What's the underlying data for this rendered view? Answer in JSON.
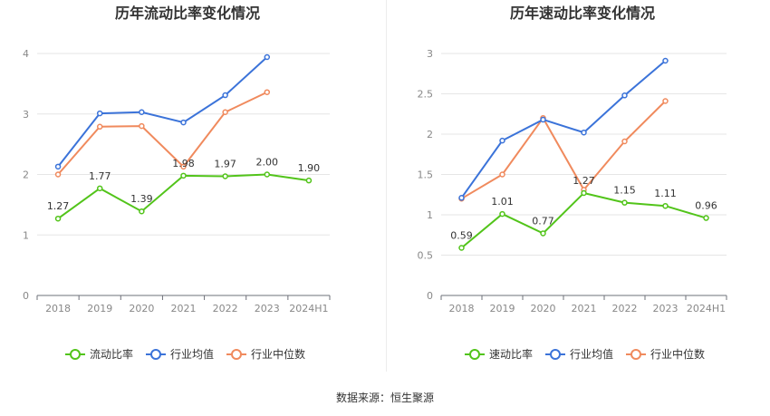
{
  "footer": "数据来源：恒生聚源",
  "chart_data": [
    {
      "type": "line",
      "title": "历年流动比率变化情况",
      "categories": [
        "2018",
        "2019",
        "2020",
        "2021",
        "2022",
        "2023",
        "2024H1"
      ],
      "ylim": [
        0,
        4
      ],
      "yticks": [
        "0",
        "1",
        "2",
        "3",
        "4"
      ],
      "grid": true,
      "legend": "bottom",
      "series": [
        {
          "name": "流动比率",
          "color": "#52c41a",
          "labels": true,
          "values": [
            1.27,
            1.77,
            1.39,
            1.98,
            1.97,
            2.0,
            1.9
          ],
          "value_labels": [
            "1.27",
            "1.77",
            "1.39",
            "1.98",
            "1.97",
            "2.00",
            "1.90"
          ]
        },
        {
          "name": "行业均值",
          "color": "#3b73d9",
          "values": [
            2.13,
            3.01,
            3.03,
            2.86,
            3.31,
            3.94,
            null
          ]
        },
        {
          "name": "行业中位数",
          "color": "#f08a5d",
          "values": [
            2.0,
            2.79,
            2.8,
            2.13,
            3.03,
            3.36,
            null
          ]
        }
      ]
    },
    {
      "type": "line",
      "title": "历年速动比率变化情况",
      "categories": [
        "2018",
        "2019",
        "2020",
        "2021",
        "2022",
        "2023",
        "2024H1"
      ],
      "ylim": [
        0,
        3
      ],
      "yticks": [
        "0",
        "0.5",
        "1",
        "1.5",
        "2",
        "2.5",
        "3"
      ],
      "grid": true,
      "legend": "bottom",
      "series": [
        {
          "name": "速动比率",
          "color": "#52c41a",
          "labels": true,
          "values": [
            0.59,
            1.01,
            0.77,
            1.27,
            1.15,
            1.11,
            0.96
          ],
          "value_labels": [
            "0.59",
            "1.01",
            "0.77",
            "1.27",
            "1.15",
            "1.11",
            "0.96"
          ]
        },
        {
          "name": "行业均值",
          "color": "#3b73d9",
          "values": [
            1.21,
            1.92,
            2.18,
            2.02,
            2.48,
            2.91,
            null
          ]
        },
        {
          "name": "行业中位数",
          "color": "#f08a5d",
          "values": [
            1.2,
            1.5,
            2.2,
            1.31,
            1.91,
            2.41,
            null
          ]
        }
      ]
    }
  ]
}
